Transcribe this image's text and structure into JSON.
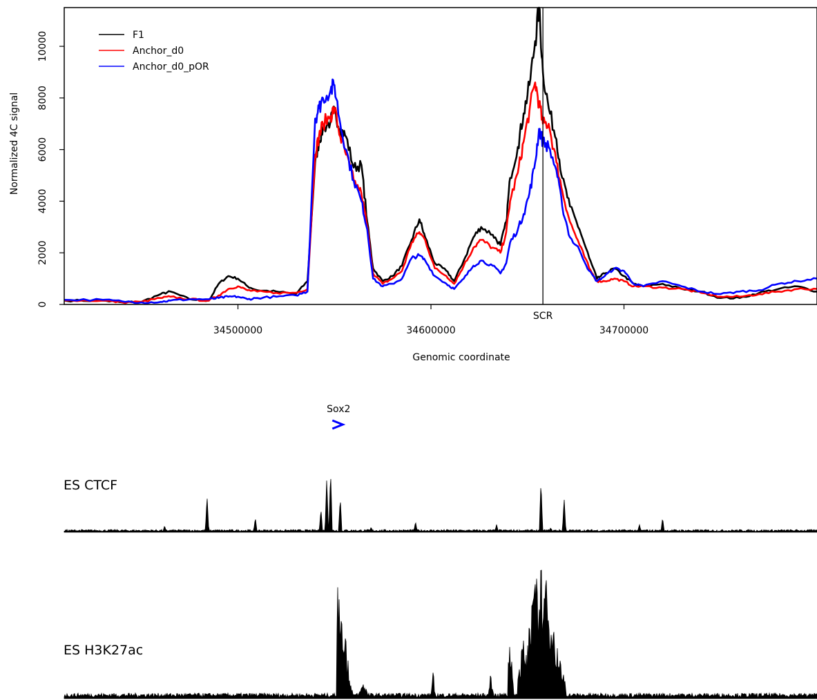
{
  "chart_data": [
    {
      "type": "line",
      "title": "",
      "xlabel": "Genomic coordinate",
      "ylabel": "Normalized 4C signal",
      "xlim": [
        34410000,
        34800000
      ],
      "ylim": [
        0,
        11500
      ],
      "x_ticks": [
        34500000,
        34600000,
        34700000
      ],
      "x_tick_labels": [
        "34500000",
        "34600000",
        "34700000"
      ],
      "y_ticks": [
        0,
        2000,
        4000,
        6000,
        8000,
        10000
      ],
      "y_tick_labels": [
        "0",
        "2000",
        "4000",
        "6000",
        "8000",
        "10000"
      ],
      "grid": false,
      "legend_position": "top-left",
      "viewpoint": {
        "label": "SCR",
        "x": 34658000
      },
      "series": [
        {
          "name": "F1",
          "color": "#000000",
          "x": [
            34410000,
            34430000,
            34440000,
            34450000,
            34460000,
            34465000,
            34475000,
            34485000,
            34490000,
            34495000,
            34500000,
            34505000,
            34510000,
            34520000,
            34530000,
            34536000,
            34540000,
            34542000,
            34544000,
            34548000,
            34550000,
            34553000,
            34556000,
            34560000,
            34564000,
            34567000,
            34570000,
            34575000,
            34580000,
            34585000,
            34590000,
            34594000,
            34597000,
            34602000,
            34608000,
            34612000,
            34617000,
            34622000,
            34626000,
            34632000,
            34636000,
            34639000,
            34641000,
            34645000,
            34648000,
            34651000,
            34654000,
            34656000,
            34658000,
            34661000,
            34665000,
            34668000,
            34672000,
            34677000,
            34682000,
            34686000,
            34690000,
            34695000,
            34700000,
            34705000,
            34710000,
            34720000,
            34730000,
            34740000,
            34750000,
            34760000,
            34770000,
            34780000,
            34790000,
            34800000
          ],
          "values": [
            150,
            150,
            80,
            100,
            400,
            500,
            200,
            150,
            800,
            1100,
            1000,
            700,
            550,
            500,
            400,
            900,
            5500,
            6300,
            6800,
            7100,
            7500,
            6800,
            6500,
            5300,
            5400,
            3200,
            1400,
            900,
            1100,
            1500,
            2500,
            3300,
            2600,
            1600,
            1300,
            900,
            1700,
            2600,
            3000,
            2700,
            2300,
            3200,
            4900,
            6100,
            7400,
            8500,
            10200,
            11500,
            9000,
            7600,
            6400,
            4900,
            3800,
            2900,
            1800,
            1000,
            1200,
            1400,
            1100,
            800,
            700,
            800,
            600,
            500,
            250,
            250,
            450,
            600,
            700,
            500
          ]
        },
        {
          "name": "Anchor_d0",
          "color": "#ff0000",
          "x": [
            34410000,
            34430000,
            34440000,
            34450000,
            34460000,
            34465000,
            34475000,
            34485000,
            34490000,
            34495000,
            34500000,
            34505000,
            34510000,
            34520000,
            34530000,
            34536000,
            34540000,
            34542000,
            34544000,
            34548000,
            34550000,
            34553000,
            34556000,
            34560000,
            34564000,
            34567000,
            34570000,
            34575000,
            34580000,
            34585000,
            34590000,
            34594000,
            34597000,
            34602000,
            34608000,
            34612000,
            34617000,
            34622000,
            34626000,
            34632000,
            34636000,
            34639000,
            34641000,
            34645000,
            34648000,
            34651000,
            34654000,
            34656000,
            34658000,
            34661000,
            34665000,
            34668000,
            34672000,
            34677000,
            34682000,
            34686000,
            34690000,
            34695000,
            34700000,
            34705000,
            34710000,
            34720000,
            34730000,
            34740000,
            34750000,
            34760000,
            34770000,
            34780000,
            34790000,
            34800000
          ],
          "values": [
            150,
            150,
            80,
            100,
            250,
            300,
            200,
            150,
            350,
            600,
            700,
            550,
            500,
            450,
            450,
            600,
            5800,
            6500,
            7000,
            7300,
            7600,
            6500,
            5800,
            4800,
            4300,
            3000,
            1200,
            800,
            1000,
            1300,
            2400,
            2800,
            2500,
            1400,
            1100,
            800,
            1500,
            2200,
            2500,
            2200,
            2000,
            2800,
            4000,
            5100,
            6300,
            7500,
            8600,
            7800,
            7000,
            7000,
            5500,
            4400,
            3200,
            2300,
            1400,
            900,
            900,
            1000,
            900,
            700,
            700,
            650,
            600,
            450,
            300,
            300,
            400,
            500,
            600,
            600
          ]
        },
        {
          "name": "Anchor_d0_pOR",
          "color": "#0000ff",
          "x": [
            34410000,
            34430000,
            34440000,
            34450000,
            34460000,
            34465000,
            34475000,
            34485000,
            34490000,
            34495000,
            34500000,
            34505000,
            34510000,
            34520000,
            34530000,
            34536000,
            34540000,
            34542000,
            34544000,
            34548000,
            34550000,
            34553000,
            34556000,
            34560000,
            34564000,
            34567000,
            34570000,
            34575000,
            34580000,
            34585000,
            34590000,
            34594000,
            34597000,
            34602000,
            34608000,
            34612000,
            34617000,
            34622000,
            34626000,
            34632000,
            34636000,
            34639000,
            34641000,
            34645000,
            34648000,
            34651000,
            34654000,
            34656000,
            34658000,
            34661000,
            34665000,
            34668000,
            34672000,
            34677000,
            34682000,
            34686000,
            34690000,
            34695000,
            34700000,
            34705000,
            34710000,
            34720000,
            34730000,
            34740000,
            34750000,
            34760000,
            34770000,
            34780000,
            34790000,
            34800000
          ],
          "values": [
            180,
            180,
            120,
            80,
            100,
            150,
            200,
            200,
            250,
            300,
            300,
            200,
            250,
            300,
            350,
            500,
            7200,
            7600,
            8000,
            8300,
            8500,
            7000,
            6000,
            4800,
            4000,
            2900,
            1000,
            700,
            800,
            1000,
            1800,
            1900,
            1700,
            1100,
            800,
            600,
            1000,
            1500,
            1700,
            1500,
            1200,
            1600,
            2400,
            2900,
            3500,
            4300,
            5500,
            6800,
            6300,
            6100,
            5200,
            3800,
            2600,
            2100,
            1300,
            900,
            1100,
            1400,
            1300,
            800,
            700,
            900,
            700,
            500,
            400,
            500,
            550,
            800,
            900,
            1000
          ]
        }
      ]
    },
    {
      "type": "area",
      "gene_annotation": {
        "label": "Sox2",
        "x": 34550000,
        "strand": "+",
        "color": "#0000ff"
      },
      "tracks": [
        {
          "name": "ES CTCF",
          "color": "#000000",
          "peaks": [
            {
              "x": 34462000,
              "h": 0.1
            },
            {
              "x": 34484000,
              "h": 0.55
            },
            {
              "x": 34509000,
              "h": 0.22
            },
            {
              "x": 34543000,
              "h": 0.35
            },
            {
              "x": 34546000,
              "h": 0.82
            },
            {
              "x": 34548000,
              "h": 0.92
            },
            {
              "x": 34553000,
              "h": 0.52
            },
            {
              "x": 34569000,
              "h": 0.08
            },
            {
              "x": 34592000,
              "h": 0.16
            },
            {
              "x": 34634000,
              "h": 0.12
            },
            {
              "x": 34657000,
              "h": 0.77
            },
            {
              "x": 34662000,
              "h": 0.07
            },
            {
              "x": 34669000,
              "h": 0.52
            },
            {
              "x": 34708000,
              "h": 0.12
            },
            {
              "x": 34720000,
              "h": 0.22
            }
          ]
        },
        {
          "name": "ES H3K27ac",
          "color": "#000000",
          "regions": [
            {
              "start": 34551000,
              "end": 34561000,
              "peak": 34552000,
              "h": 1.0
            },
            {
              "start": 34562000,
              "end": 34567000,
              "peak": 34565000,
              "h": 0.12
            },
            {
              "start": 34640000,
              "end": 34643000,
              "peak": 34641000,
              "h": 0.5
            },
            {
              "start": 34645000,
              "end": 34652000,
              "peak": 34648000,
              "h": 0.45
            },
            {
              "start": 34650000,
              "end": 34670000,
              "peak": 34657000,
              "h": 1.0
            },
            {
              "start": 34600000,
              "end": 34602000,
              "peak": 34601000,
              "h": 0.2
            },
            {
              "start": 34630000,
              "end": 34633000,
              "peak": 34631000,
              "h": 0.18
            }
          ]
        }
      ]
    }
  ]
}
